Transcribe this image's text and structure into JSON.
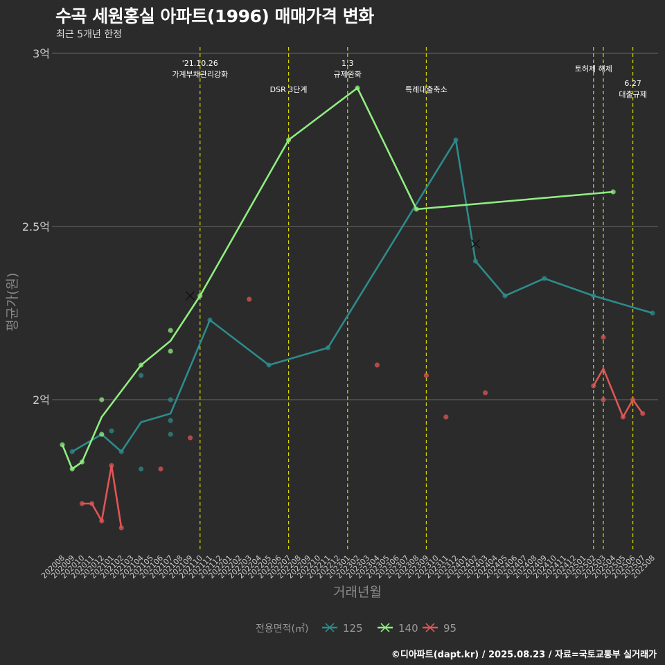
{
  "header": {
    "title": "수곡 세원홍실 아파트(1996) 매매가격 변화",
    "subtitle": "최근 5개년 한정",
    "caption": "©디아파트(dapt.kr) / 2025.08.23 / 자료=국토교통부 실거래가"
  },
  "chart_data": {
    "type": "line",
    "title": "수곡 세원홍실 아파트(1996) 매매가격 변화",
    "subtitle": "최근 5개년 한정",
    "xlabel": "거래년월",
    "ylabel": "평균가(원)",
    "x_ticks": [
      "202008",
      "202009",
      "202010",
      "202011",
      "202012",
      "202101",
      "202102",
      "202103",
      "202104",
      "202105",
      "202106",
      "202107",
      "202108",
      "202109",
      "202110",
      "202111",
      "202112",
      "202201",
      "202202",
      "202203",
      "202204",
      "202205",
      "202206",
      "202207",
      "202208",
      "202209",
      "202210",
      "202211",
      "202212",
      "202301",
      "202302",
      "202303",
      "202304",
      "202305",
      "202306",
      "202307",
      "202308",
      "202309",
      "202310",
      "202311",
      "202312",
      "202401",
      "202402",
      "202403",
      "202404",
      "202405",
      "202406",
      "202407",
      "202408",
      "202409",
      "202410",
      "202411",
      "202412",
      "202501",
      "202502",
      "202503",
      "202504",
      "202505",
      "202506",
      "202507",
      "202508"
    ],
    "y_ticks": [
      {
        "value": 2.0,
        "label": "2억"
      },
      {
        "value": 2.5,
        "label": "2.5억"
      },
      {
        "value": 3.0,
        "label": "3억"
      }
    ],
    "ylim": [
      1.57,
      3.03
    ],
    "y_unit": "억",
    "grid": "horizontal",
    "legend_title": "전용면적(㎡)",
    "legend_position": "bottom",
    "series": [
      {
        "name": "125",
        "color": "#2e8b8b",
        "line": [
          [
            "202009",
            1.85
          ],
          [
            "202012",
            1.9
          ],
          [
            "202102",
            1.85
          ],
          [
            "202104",
            1.935
          ],
          [
            "202107",
            1.96
          ],
          [
            "202111",
            2.23
          ],
          [
            "202205",
            2.1
          ],
          [
            "202211",
            2.15
          ],
          [
            "202312",
            2.75
          ],
          [
            "202402",
            2.4
          ],
          [
            "202405",
            2.3
          ],
          [
            "202409",
            2.35
          ],
          [
            "202502",
            2.3
          ],
          [
            "202508",
            2.25
          ]
        ],
        "points": [
          [
            "202009",
            1.85
          ],
          [
            "202101",
            1.91
          ],
          [
            "202102",
            1.85
          ],
          [
            "202104",
            1.8
          ],
          [
            "202104",
            2.07
          ],
          [
            "202107",
            1.94
          ],
          [
            "202107",
            1.9
          ],
          [
            "202107",
            2.0
          ],
          [
            "202111",
            2.23
          ],
          [
            "202205",
            2.1
          ],
          [
            "202211",
            2.15
          ],
          [
            "202312",
            2.75
          ],
          [
            "202402",
            2.4
          ],
          [
            "202405",
            2.3
          ],
          [
            "202409",
            2.35
          ],
          [
            "202502",
            2.3
          ],
          [
            "202508",
            2.25
          ]
        ],
        "marked": [
          [
            "202402",
            2.45
          ]
        ]
      },
      {
        "name": "140",
        "color": "#90ee80",
        "line": [
          [
            "202008",
            1.87
          ],
          [
            "202009",
            1.8
          ],
          [
            "202010",
            1.82
          ],
          [
            "202012",
            1.95
          ],
          [
            "202104",
            2.1
          ],
          [
            "202107",
            2.17
          ],
          [
            "202110",
            2.3
          ],
          [
            "202207",
            2.75
          ],
          [
            "202302",
            2.9
          ],
          [
            "202308",
            2.55
          ],
          [
            "202504",
            2.6
          ]
        ],
        "points": [
          [
            "202008",
            1.87
          ],
          [
            "202009",
            1.8
          ],
          [
            "202010",
            1.82
          ],
          [
            "202012",
            2.0
          ],
          [
            "202012",
            1.9
          ],
          [
            "202104",
            2.1
          ],
          [
            "202107",
            2.2
          ],
          [
            "202107",
            2.14
          ],
          [
            "202110",
            2.3
          ],
          [
            "202207",
            2.75
          ],
          [
            "202302",
            2.9
          ],
          [
            "202308",
            2.55
          ],
          [
            "202504",
            2.6
          ]
        ],
        "marked": [
          [
            "202109",
            2.3
          ]
        ]
      },
      {
        "name": "95",
        "color": "#e05555",
        "line": [
          [
            "202010",
            1.7
          ],
          [
            "202011",
            1.7
          ],
          [
            "202012",
            1.65
          ],
          [
            "202101",
            1.81
          ],
          [
            "202102",
            1.63
          ]
        ],
        "line2": [
          [
            "202502",
            2.04
          ],
          [
            "202503",
            2.09
          ],
          [
            "202505",
            1.95
          ],
          [
            "202506",
            2.0
          ],
          [
            "202507",
            1.96
          ]
        ],
        "points": [
          [
            "202010",
            1.7
          ],
          [
            "202011",
            1.7
          ],
          [
            "202012",
            1.65
          ],
          [
            "202101",
            1.81
          ],
          [
            "202102",
            1.63
          ],
          [
            "202106",
            1.8
          ],
          [
            "202109",
            1.89
          ],
          [
            "202203",
            2.29
          ],
          [
            "202304",
            2.1
          ],
          [
            "202309",
            2.07
          ],
          [
            "202311",
            1.95
          ],
          [
            "202403",
            2.02
          ],
          [
            "202502",
            2.04
          ],
          [
            "202503",
            2.18
          ],
          [
            "202503",
            2.0
          ],
          [
            "202505",
            1.95
          ],
          [
            "202506",
            2.0
          ],
          [
            "202507",
            1.96
          ]
        ],
        "marked": []
      }
    ],
    "events": [
      {
        "x": "202110",
        "label_lines": [
          "'21.10.26",
          "가계부채관리강화"
        ],
        "row": 1
      },
      {
        "x": "202207",
        "label_lines": [
          "DSR 3단계"
        ],
        "row": 2
      },
      {
        "x": "202301",
        "label_lines": [
          "1.3",
          "규제완화"
        ],
        "row": 1
      },
      {
        "x": "202309",
        "label_lines": [
          "특례대출축소"
        ],
        "row": 2
      },
      {
        "x": "202502",
        "label_lines": [
          "토허제 해제"
        ],
        "row": 1
      },
      {
        "x": "202503",
        "label_lines": [],
        "row": 1
      },
      {
        "x": "202506",
        "label_lines": [
          "6.27",
          "대출규제"
        ],
        "row": 2
      }
    ],
    "colors": {
      "background": "#2b2b2b",
      "grid": "#6a6a6a",
      "event_line": "#d7d700",
      "axis_text": "#cccccc",
      "axis_title": "#888888"
    }
  }
}
